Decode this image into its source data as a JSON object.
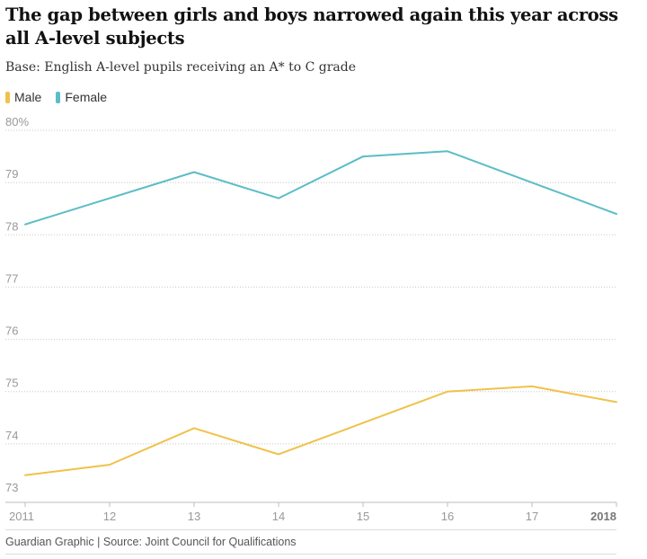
{
  "headline": "The gap between girls and boys narrowed again this year across all A-level subjects",
  "standfirst": "Base: English A-level pupils receiving an A* to C grade",
  "footer": "Guardian Graphic | Source: Joint Council for Qualifications",
  "colors": {
    "male": "#f0c24a",
    "female": "#5bbdc6",
    "grid": "#c8c8c8",
    "tick": "#999999"
  },
  "chart_data": {
    "type": "line",
    "title": "The gap between girls and boys narrowed again this year across all A-level subjects",
    "subtitle": "Base: English A-level pupils receiving an A* to C grade",
    "x": [
      2011,
      2012,
      2013,
      2014,
      2015,
      2016,
      2017,
      2018
    ],
    "x_tick_labels": [
      "2011",
      "12",
      "13",
      "14",
      "15",
      "16",
      "17",
      "2018"
    ],
    "y_tick_labels": [
      "80%",
      "79",
      "78",
      "77",
      "76",
      "75",
      "74",
      "73"
    ],
    "ylim": [
      73,
      80
    ],
    "grid": true,
    "legend_placement": "top-left",
    "series": [
      {
        "name": "Male",
        "values": [
          73.4,
          73.6,
          74.3,
          73.8,
          74.4,
          75.0,
          75.1,
          74.8
        ]
      },
      {
        "name": "Female",
        "values": [
          78.2,
          78.7,
          79.2,
          78.7,
          79.5,
          79.6,
          79.0,
          78.4
        ]
      }
    ]
  }
}
